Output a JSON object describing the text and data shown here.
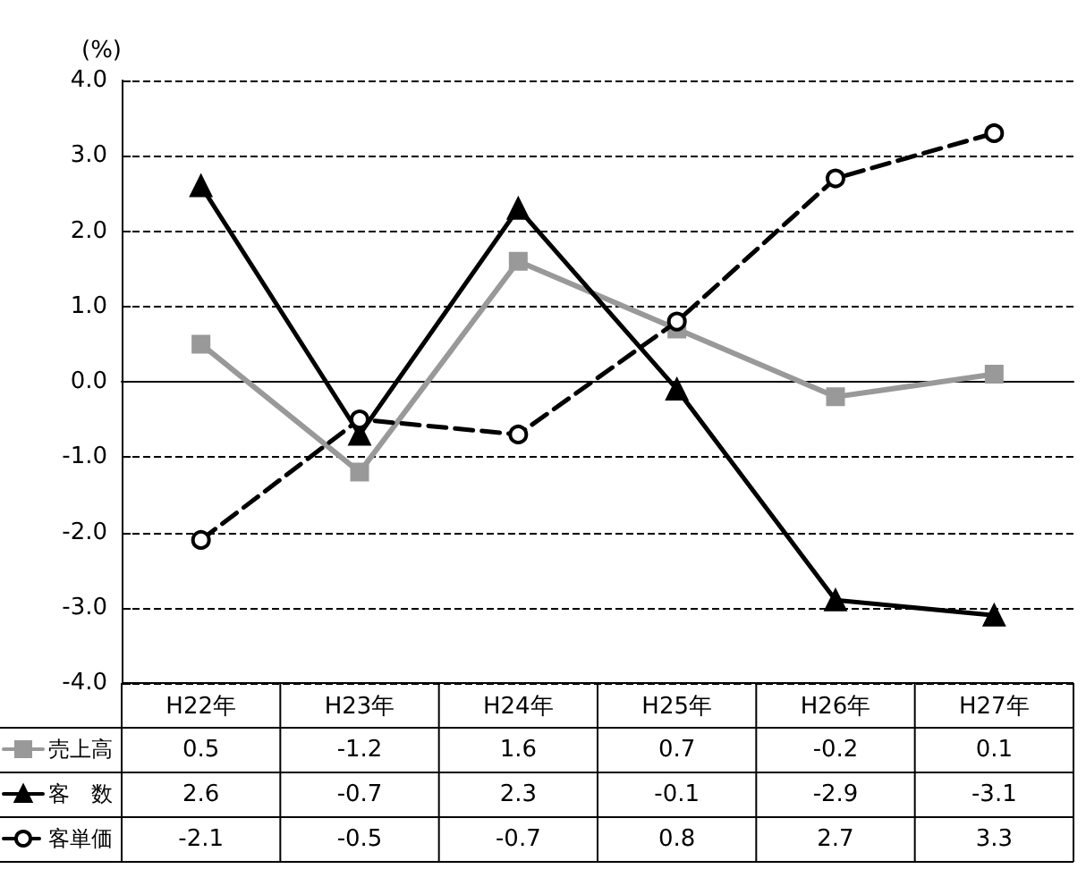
{
  "chart_data": {
    "type": "line",
    "ylabel": "(%)",
    "categories": [
      "H22年",
      "H23年",
      "H24年",
      "H25年",
      "H26年",
      "H27年"
    ],
    "series": [
      {
        "name": "売上高",
        "color": "#999999",
        "marker": "square",
        "line_style": "solid",
        "values": [
          0.5,
          -1.2,
          1.6,
          0.7,
          -0.2,
          0.1
        ]
      },
      {
        "name": "客　数",
        "color": "#000000",
        "marker": "triangle",
        "line_style": "solid",
        "values": [
          2.6,
          -0.7,
          2.3,
          -0.1,
          -2.9,
          -3.1
        ]
      },
      {
        "name": "客単価",
        "color": "#000000",
        "marker": "circle",
        "line_style": "dashed",
        "values": [
          -2.1,
          -0.5,
          -0.7,
          0.8,
          2.7,
          3.3
        ]
      }
    ],
    "ylim": [
      -4,
      4
    ],
    "yticks": [
      {
        "value": -4,
        "label": "-4.0"
      },
      {
        "value": -3,
        "label": "-3.0"
      },
      {
        "value": -2,
        "label": "-2.0"
      },
      {
        "value": -1,
        "label": "-1.0"
      },
      {
        "value": 0,
        "label": "0.0"
      },
      {
        "value": 1,
        "label": "1.0"
      },
      {
        "value": 2,
        "label": "2.0"
      },
      {
        "value": 3,
        "label": "3.0"
      },
      {
        "value": 4,
        "label": "4.0"
      }
    ],
    "grid": "y",
    "legend": "left",
    "data_labels": true
  }
}
